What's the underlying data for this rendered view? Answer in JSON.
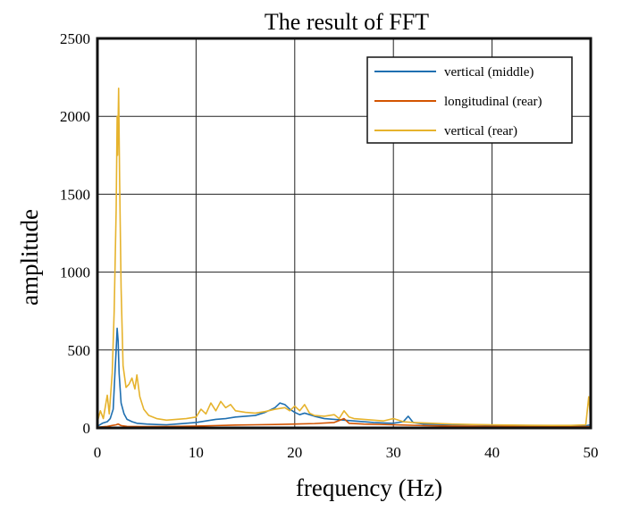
{
  "chart_data": {
    "type": "line",
    "title": "The result of FFT",
    "xlabel": "frequency (Hz)",
    "ylabel": "amplitude",
    "xlim": [
      0,
      50
    ],
    "ylim": [
      0,
      2500
    ],
    "x_ticks": [
      "0",
      "10",
      "20",
      "30",
      "40",
      "50"
    ],
    "y_ticks": [
      "0",
      "500",
      "1000",
      "1500",
      "2000",
      "2500"
    ],
    "grid": true,
    "legend_position": "top-right",
    "series": [
      {
        "name": "vertical (middle)",
        "color": "#1f6fb0",
        "points": [
          [
            0,
            10
          ],
          [
            0.5,
            30
          ],
          [
            1,
            40
          ],
          [
            1.3,
            60
          ],
          [
            1.6,
            120
          ],
          [
            1.8,
            380
          ],
          [
            1.9,
            500
          ],
          [
            2.0,
            640
          ],
          [
            2.1,
            560
          ],
          [
            2.2,
            350
          ],
          [
            2.4,
            160
          ],
          [
            2.7,
            90
          ],
          [
            3.0,
            55
          ],
          [
            3.5,
            40
          ],
          [
            4,
            30
          ],
          [
            5,
            25
          ],
          [
            6,
            22
          ],
          [
            7,
            20
          ],
          [
            8,
            25
          ],
          [
            9,
            30
          ],
          [
            10,
            35
          ],
          [
            11,
            45
          ],
          [
            12,
            55
          ],
          [
            13,
            60
          ],
          [
            14,
            70
          ],
          [
            15,
            75
          ],
          [
            16,
            80
          ],
          [
            17,
            100
          ],
          [
            18,
            130
          ],
          [
            18.5,
            160
          ],
          [
            19,
            150
          ],
          [
            19.5,
            120
          ],
          [
            20,
            100
          ],
          [
            20.5,
            85
          ],
          [
            21,
            95
          ],
          [
            22,
            75
          ],
          [
            23,
            60
          ],
          [
            24,
            55
          ],
          [
            25,
            50
          ],
          [
            26,
            45
          ],
          [
            27,
            40
          ],
          [
            28,
            35
          ],
          [
            29,
            32
          ],
          [
            30,
            30
          ],
          [
            31,
            40
          ],
          [
            31.5,
            75
          ],
          [
            32,
            35
          ],
          [
            33,
            25
          ],
          [
            35,
            22
          ],
          [
            38,
            20
          ],
          [
            40,
            18
          ],
          [
            42,
            16
          ],
          [
            45,
            15
          ],
          [
            48,
            14
          ],
          [
            49.5,
            14
          ],
          [
            50,
            20
          ]
        ]
      },
      {
        "name": "longitudinal (rear)",
        "color": "#d35400",
        "points": [
          [
            0,
            5
          ],
          [
            1,
            10
          ],
          [
            1.9,
            20
          ],
          [
            2.1,
            25
          ],
          [
            2.4,
            15
          ],
          [
            3,
            10
          ],
          [
            5,
            8
          ],
          [
            8,
            10
          ],
          [
            10,
            12
          ],
          [
            12,
            15
          ],
          [
            14,
            18
          ],
          [
            16,
            20
          ],
          [
            18,
            22
          ],
          [
            20,
            25
          ],
          [
            22,
            28
          ],
          [
            24,
            35
          ],
          [
            25,
            60
          ],
          [
            25.5,
            30
          ],
          [
            27,
            25
          ],
          [
            30,
            20
          ],
          [
            33,
            15
          ],
          [
            36,
            12
          ],
          [
            40,
            10
          ],
          [
            45,
            8
          ],
          [
            50,
            8
          ]
        ]
      },
      {
        "name": "vertical (rear)",
        "color": "#e6b32d",
        "points": [
          [
            0,
            40
          ],
          [
            0.3,
            110
          ],
          [
            0.6,
            60
          ],
          [
            1.0,
            210
          ],
          [
            1.2,
            90
          ],
          [
            1.5,
            350
          ],
          [
            1.7,
            750
          ],
          [
            1.9,
            1400
          ],
          [
            2.0,
            2000
          ],
          [
            2.05,
            1750
          ],
          [
            2.15,
            2180
          ],
          [
            2.25,
            1600
          ],
          [
            2.4,
            900
          ],
          [
            2.6,
            400
          ],
          [
            2.9,
            260
          ],
          [
            3.2,
            280
          ],
          [
            3.5,
            320
          ],
          [
            3.8,
            250
          ],
          [
            4.0,
            340
          ],
          [
            4.3,
            200
          ],
          [
            4.7,
            120
          ],
          [
            5.2,
            80
          ],
          [
            6,
            60
          ],
          [
            7,
            50
          ],
          [
            8,
            55
          ],
          [
            9,
            60
          ],
          [
            10,
            70
          ],
          [
            10.5,
            120
          ],
          [
            11,
            90
          ],
          [
            11.5,
            160
          ],
          [
            12,
            110
          ],
          [
            12.5,
            170
          ],
          [
            13,
            130
          ],
          [
            13.5,
            150
          ],
          [
            14,
            110
          ],
          [
            15,
            100
          ],
          [
            16,
            95
          ],
          [
            17,
            105
          ],
          [
            18,
            120
          ],
          [
            19,
            130
          ],
          [
            19.5,
            110
          ],
          [
            20,
            140
          ],
          [
            20.5,
            110
          ],
          [
            21,
            150
          ],
          [
            21.5,
            95
          ],
          [
            22,
            80
          ],
          [
            23,
            75
          ],
          [
            24,
            85
          ],
          [
            24.5,
            60
          ],
          [
            25,
            110
          ],
          [
            25.5,
            70
          ],
          [
            26,
            60
          ],
          [
            27,
            55
          ],
          [
            28,
            50
          ],
          [
            29,
            45
          ],
          [
            30,
            60
          ],
          [
            31,
            40
          ],
          [
            32,
            35
          ],
          [
            34,
            30
          ],
          [
            36,
            25
          ],
          [
            38,
            22
          ],
          [
            40,
            20
          ],
          [
            42,
            18
          ],
          [
            44,
            17
          ],
          [
            46,
            16
          ],
          [
            48,
            16
          ],
          [
            49.5,
            20
          ],
          [
            49.8,
            200
          ],
          [
            50,
            40
          ]
        ]
      }
    ]
  }
}
